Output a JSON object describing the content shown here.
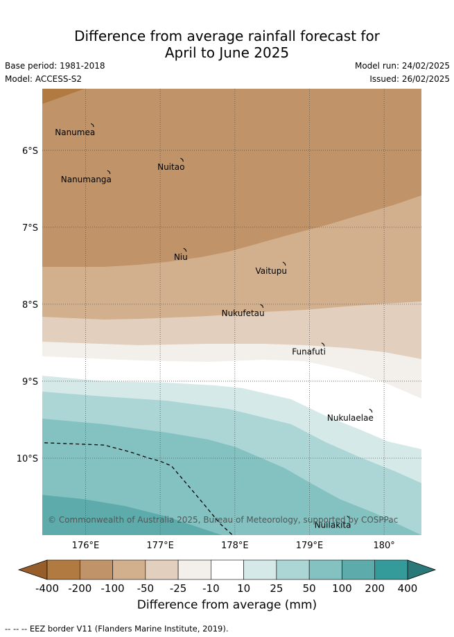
{
  "title_line1": "Difference from average rainfall forecast for",
  "title_line2": "April to June 2025",
  "base_period": "Base period: 1981-2018",
  "model": "Model: ACCESS-S2",
  "model_run": "Model run: 24/02/2025",
  "issued": "Issued: 26/02/2025",
  "copyright": "© Commonwealth of Australia 2025, Bureau of Meteorology, supported by COSPPac",
  "colorbar": {
    "label": "Difference from average (mm)",
    "ticks": [
      "-400",
      "-200",
      "-100",
      "-50",
      "-25",
      "-10",
      "10",
      "25",
      "50",
      "100",
      "200",
      "400"
    ],
    "colors": [
      "#b07a40",
      "#c09468",
      "#d2b08e",
      "#e2cfbd",
      "#f3efea",
      "#ffffff",
      "#d6e9e9",
      "#acd5d5",
      "#84c1c1",
      "#5eabab",
      "#359a9a"
    ],
    "under_color": "#965e2b",
    "over_color": "#2a7878"
  },
  "axes": {
    "lon_ticks": [
      {
        "lon": 176,
        "label": "176°E"
      },
      {
        "lon": 177,
        "label": "177°E"
      },
      {
        "lon": 178,
        "label": "178°E"
      },
      {
        "lon": 179,
        "label": "179°E"
      },
      {
        "lon": 180,
        "label": "180°"
      }
    ],
    "lat_ticks": [
      {
        "lat": -6,
        "label": "6°S"
      },
      {
        "lat": -7,
        "label": "7°S"
      },
      {
        "lat": -8,
        "label": "8°S"
      },
      {
        "lat": -9,
        "label": "9°S"
      },
      {
        "lat": -10,
        "label": "10°S"
      }
    ],
    "lon_range": [
      175.42,
      180.5
    ],
    "lat_range": [
      -11.0,
      -5.2
    ]
  },
  "islands": [
    {
      "name": "Nanumea",
      "lon": 176.1,
      "lat": -5.67
    },
    {
      "name": "Nuitao",
      "lon": 177.3,
      "lat": -6.12
    },
    {
      "name": "Nanumanga",
      "lon": 176.32,
      "lat": -6.28
    },
    {
      "name": "Niu",
      "lon": 177.34,
      "lat": -7.29
    },
    {
      "name": "Vaitupu",
      "lon": 178.67,
      "lat": -7.47
    },
    {
      "name": "Nukufetau",
      "lon": 178.37,
      "lat": -8.02
    },
    {
      "name": "Funafuti",
      "lon": 179.19,
      "lat": -8.52
    },
    {
      "name": "Nukulaelae",
      "lon": 179.83,
      "lat": -9.38
    },
    {
      "name": "Nuilakita",
      "lon": 179.53,
      "lat": -10.77
    }
  ],
  "eez_border": [
    [
      175.45,
      -9.8
    ],
    [
      176.0,
      -9.82
    ],
    [
      176.25,
      -9.83
    ],
    [
      176.6,
      -9.92
    ],
    [
      176.85,
      -10.0
    ],
    [
      177.0,
      -10.04
    ],
    [
      177.15,
      -10.1
    ],
    [
      177.5,
      -10.5
    ],
    [
      177.8,
      -10.85
    ],
    [
      177.97,
      -11.0
    ]
  ],
  "footer": "-- -- -- EEZ border V11 (Flanders Marine Institute, 2019)."
}
